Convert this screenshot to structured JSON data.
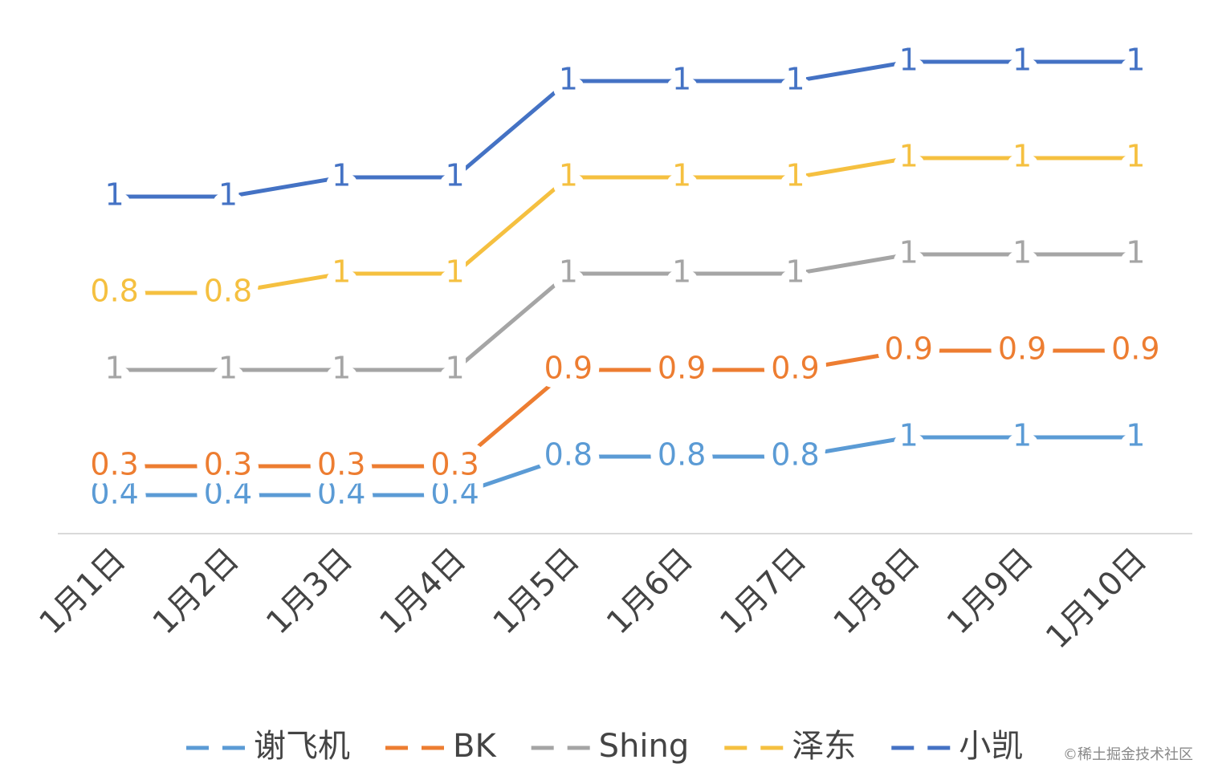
{
  "chart_data": {
    "type": "stacked_line",
    "categories": [
      "1月1日",
      "1月2日",
      "1月3日",
      "1月4日",
      "1月5日",
      "1月6日",
      "1月7日",
      "1月8日",
      "1月9日",
      "1月10日"
    ],
    "series": [
      {
        "name": "谢飞机",
        "color": "#5b9bd5",
        "values": [
          0.4,
          0.4,
          0.4,
          0.4,
          0.8,
          0.8,
          0.8,
          1,
          1,
          1
        ]
      },
      {
        "name": "BK",
        "color": "#ed7d31",
        "values": [
          0.3,
          0.3,
          0.3,
          0.3,
          0.9,
          0.9,
          0.9,
          0.9,
          0.9,
          0.9
        ]
      },
      {
        "name": "Shing",
        "color": "#a5a5a5",
        "values": [
          1,
          1,
          1,
          1,
          1,
          1,
          1,
          1,
          1,
          1
        ]
      },
      {
        "name": "泽东",
        "color": "#f5c040",
        "values": [
          0.8,
          0.8,
          1,
          1,
          1,
          1,
          1,
          1,
          1,
          1
        ]
      },
      {
        "name": "小凯",
        "color": "#4472c4",
        "values": [
          1,
          1,
          1,
          1,
          1,
          1,
          1,
          1,
          1,
          1
        ]
      }
    ],
    "ylim": [
      0,
      5
    ],
    "legend": "bottom",
    "watermark": "©稀土掘金技术社区"
  }
}
